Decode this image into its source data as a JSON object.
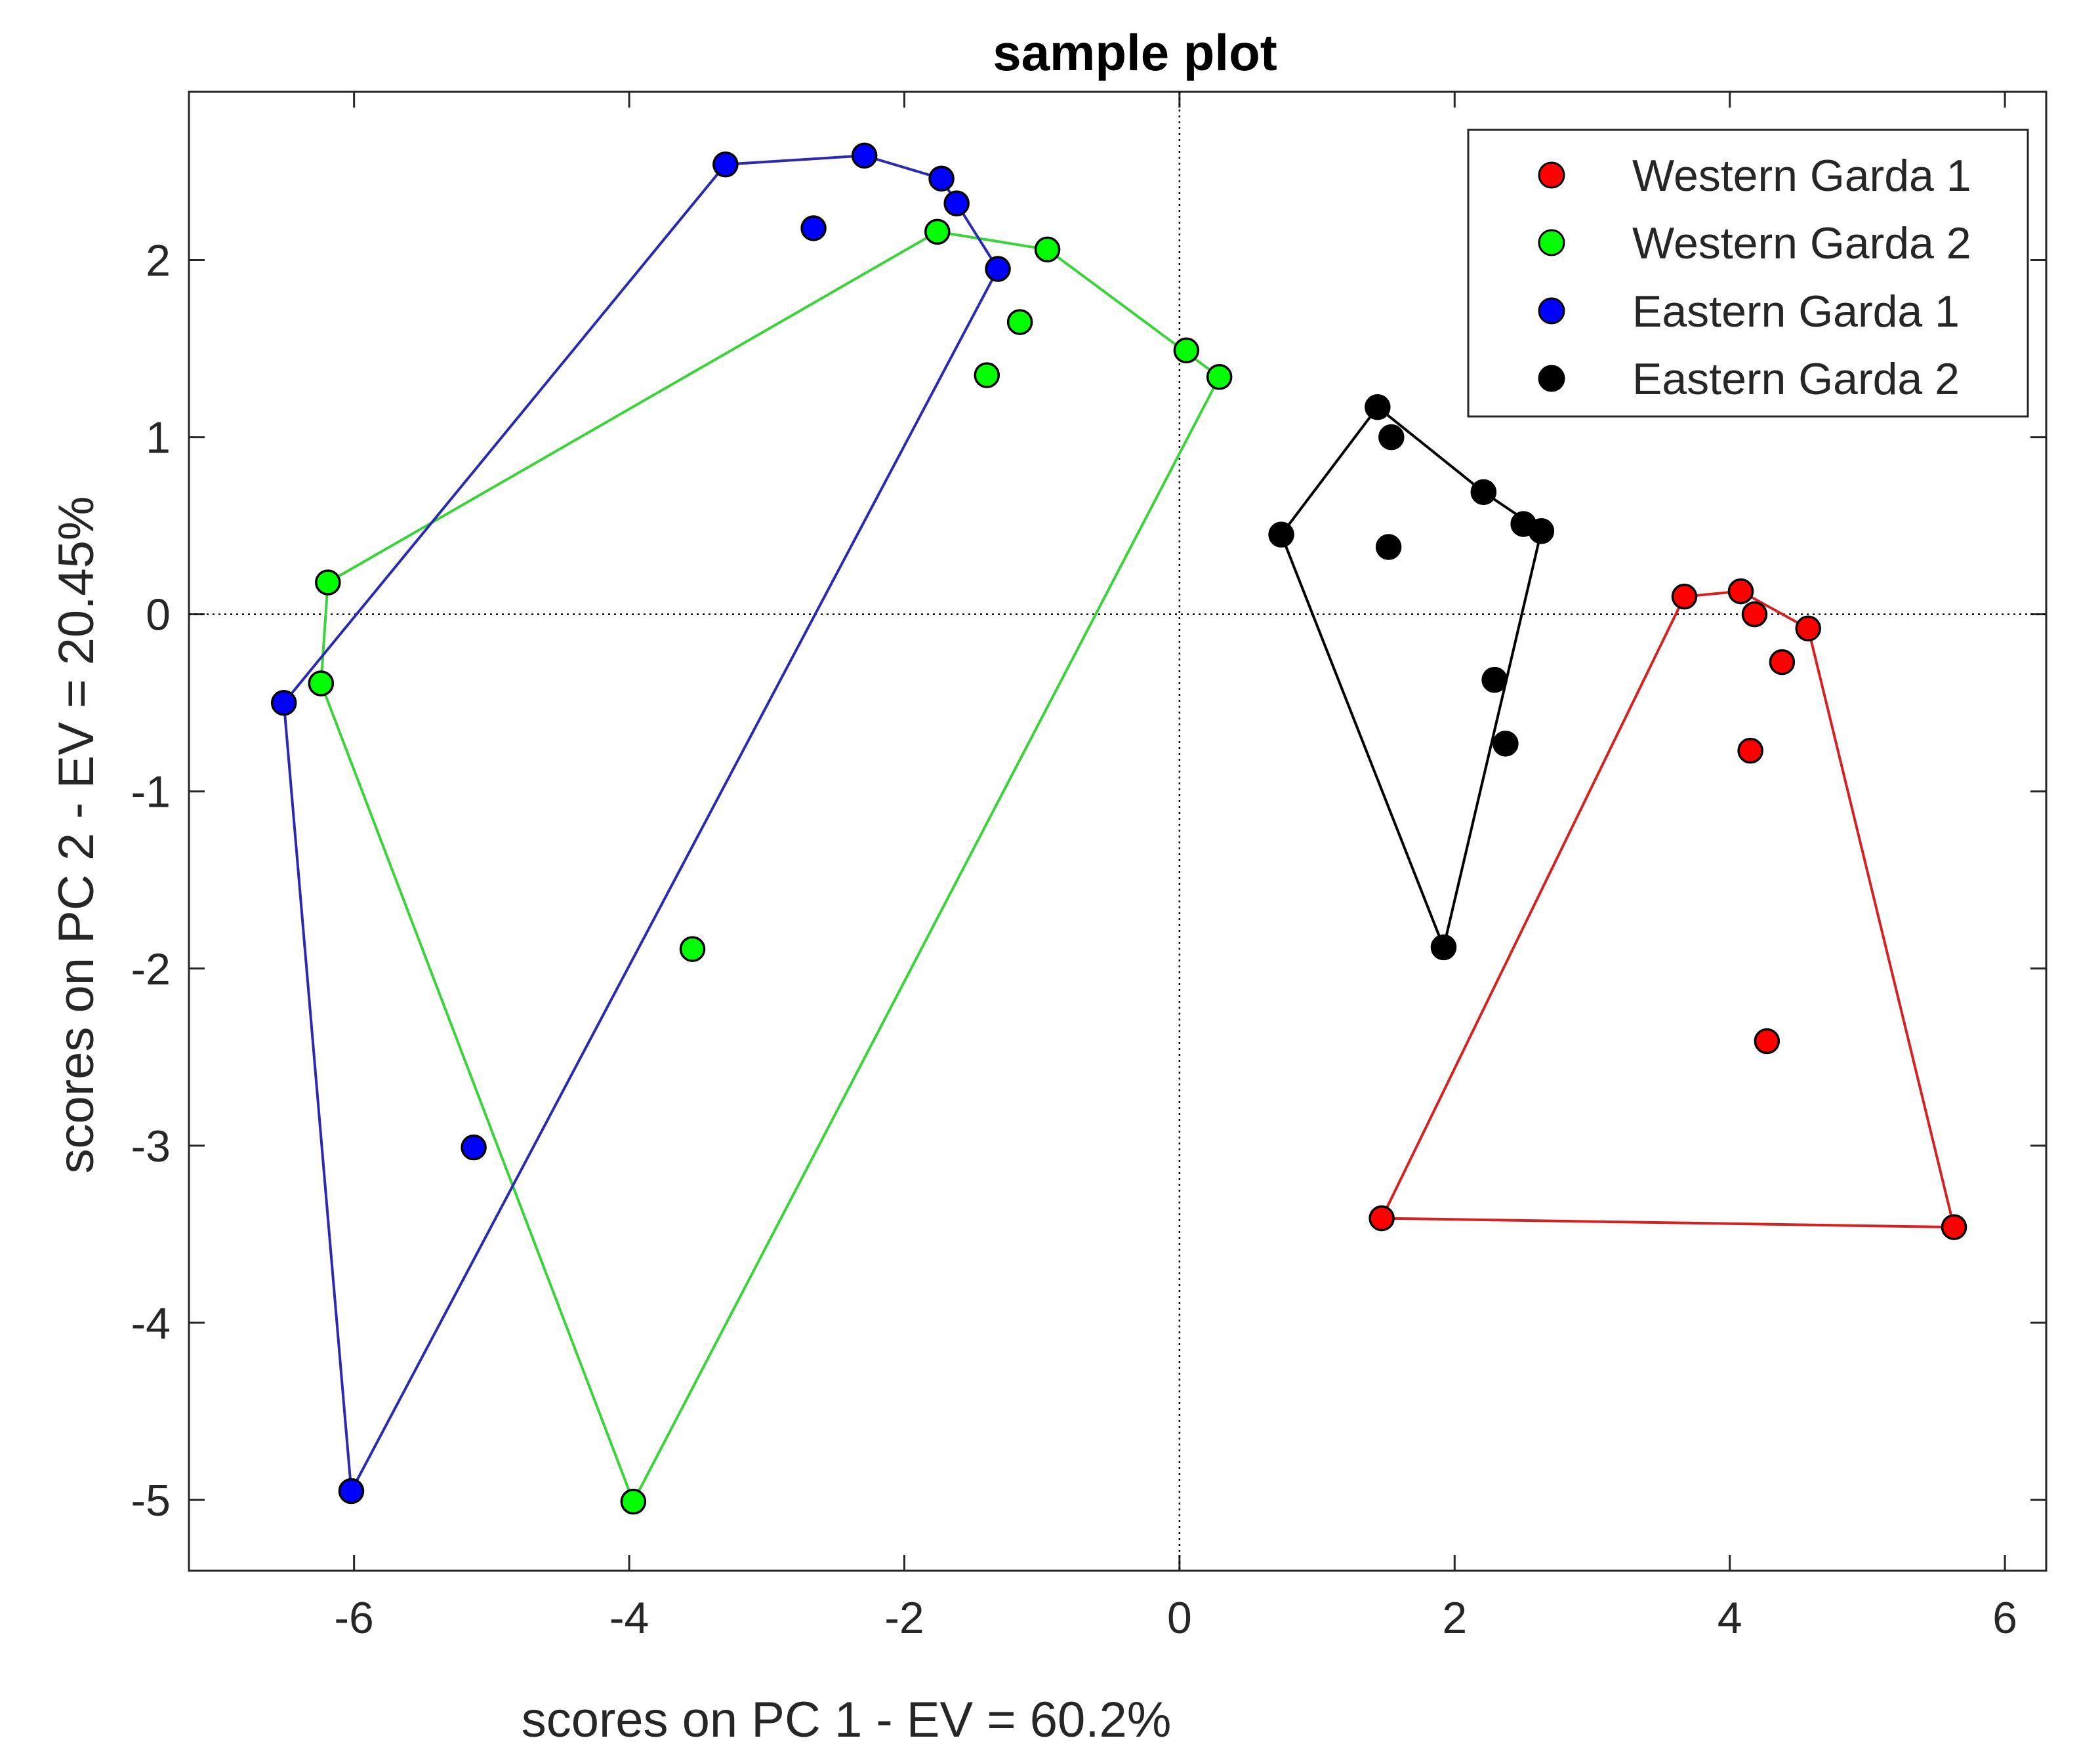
{
  "chart_data": {
    "type": "scatter",
    "title": "sample plot",
    "xlabel": "scores on PC 1 - EV = 60.2%",
    "ylabel": "scores on PC 2 - EV = 20.45%",
    "xlim": [
      -7.2,
      6.3
    ],
    "ylim": [
      -5.4,
      2.95
    ],
    "xticks": [
      -6,
      -4,
      -2,
      0,
      2,
      4,
      6
    ],
    "yticks": [
      -5,
      -4,
      -3,
      -2,
      -1,
      0,
      1,
      2
    ],
    "xtick_labels": [
      "-6",
      "-4",
      "-2",
      "0",
      "2",
      "4",
      "6"
    ],
    "ytick_labels": [
      "-5",
      "-4",
      "-3",
      "-2",
      "-1",
      "0",
      "1",
      "2"
    ],
    "legend_position": "top-right",
    "series": [
      {
        "name": "Western Garda 1",
        "color": "#ff0000",
        "hull_color": "#d42222",
        "points": [
          [
            3.67,
            0.1
          ],
          [
            4.08,
            0.13
          ],
          [
            4.18,
            0.0
          ],
          [
            4.57,
            -0.08
          ],
          [
            4.38,
            -0.27
          ],
          [
            4.15,
            -0.77
          ],
          [
            4.27,
            -2.41
          ],
          [
            1.47,
            -3.41
          ],
          [
            5.63,
            -3.46
          ]
        ],
        "hull": [
          [
            1.47,
            -3.41
          ],
          [
            3.67,
            0.1
          ],
          [
            4.08,
            0.13
          ],
          [
            4.57,
            -0.08
          ],
          [
            5.63,
            -3.46
          ]
        ]
      },
      {
        "name": "Western Garda 2",
        "color": "#00ff00",
        "hull_color": "#3ad43a",
        "points": [
          [
            -1.76,
            2.16
          ],
          [
            -0.96,
            2.06
          ],
          [
            -1.16,
            1.65
          ],
          [
            -1.4,
            1.35
          ],
          [
            0.05,
            1.49
          ],
          [
            0.29,
            1.34
          ],
          [
            -6.19,
            0.18
          ],
          [
            -6.24,
            -0.39
          ],
          [
            -3.54,
            -1.89
          ],
          [
            -3.97,
            -5.01
          ]
        ],
        "hull": [
          [
            -6.19,
            0.18
          ],
          [
            -1.76,
            2.16
          ],
          [
            -0.96,
            2.06
          ],
          [
            0.29,
            1.34
          ],
          [
            -3.97,
            -5.01
          ],
          [
            -6.24,
            -0.39
          ]
        ]
      },
      {
        "name": "Eastern Garda 1",
        "color": "#0000ff",
        "hull_color": "#2a2ab0",
        "points": [
          [
            -3.3,
            2.54
          ],
          [
            -2.29,
            2.59
          ],
          [
            -1.73,
            2.46
          ],
          [
            -1.62,
            2.32
          ],
          [
            -2.66,
            2.18
          ],
          [
            -1.32,
            1.95
          ],
          [
            -6.51,
            -0.5
          ],
          [
            -5.13,
            -3.01
          ],
          [
            -6.02,
            -4.95
          ]
        ],
        "hull": [
          [
            -6.51,
            -0.5
          ],
          [
            -3.3,
            2.54
          ],
          [
            -2.29,
            2.59
          ],
          [
            -1.73,
            2.46
          ],
          [
            -1.62,
            2.32
          ],
          [
            -1.32,
            1.95
          ],
          [
            -6.02,
            -4.95
          ]
        ]
      },
      {
        "name": "Eastern Garda 2",
        "color": "#000000",
        "hull_color": "#000000",
        "points": [
          [
            1.44,
            1.17
          ],
          [
            1.54,
            1.0
          ],
          [
            2.21,
            0.69
          ],
          [
            2.5,
            0.51
          ],
          [
            2.63,
            0.47
          ],
          [
            0.74,
            0.45
          ],
          [
            1.52,
            0.38
          ],
          [
            2.29,
            -0.37
          ],
          [
            2.37,
            -0.73
          ],
          [
            1.92,
            -1.88
          ]
        ],
        "hull": [
          [
            0.74,
            0.45
          ],
          [
            1.44,
            1.17
          ],
          [
            2.21,
            0.69
          ],
          [
            2.63,
            0.47
          ],
          [
            1.92,
            -1.88
          ]
        ]
      }
    ]
  }
}
